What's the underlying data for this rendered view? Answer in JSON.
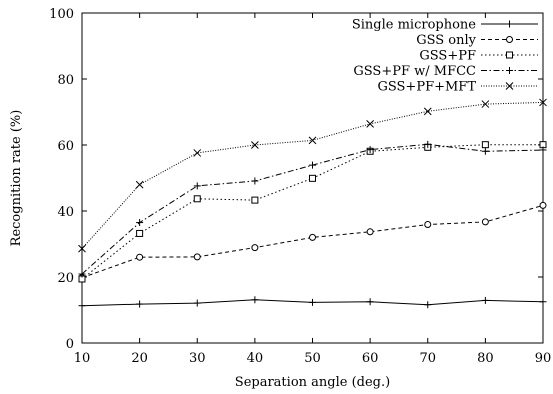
{
  "chart_data": {
    "type": "line",
    "title": "",
    "xlabel": "Separation angle (deg.)",
    "ylabel": "Recognition rate (%)",
    "xlim": [
      10,
      90
    ],
    "ylim": [
      0,
      100
    ],
    "x": [
      10,
      20,
      30,
      40,
      50,
      60,
      70,
      80,
      90
    ],
    "xticks": [
      "10",
      "20",
      "30",
      "40",
      "50",
      "60",
      "70",
      "80",
      "90"
    ],
    "yticks": [
      "0",
      "20",
      "40",
      "60",
      "80",
      "100"
    ],
    "grid": false,
    "legend_position": "top-right",
    "series": [
      {
        "name": "Single microphone",
        "marker": "plus",
        "dash": "solid",
        "values": [
          11.3,
          11.8,
          12.1,
          13.1,
          12.3,
          12.5,
          11.6,
          12.9,
          12.5
        ]
      },
      {
        "name": "GSS only",
        "marker": "circle",
        "dash": "dashed",
        "values": [
          19.8,
          26.0,
          26.1,
          28.9,
          32.0,
          33.7,
          35.9,
          36.7,
          41.7
        ]
      },
      {
        "name": "GSS+PF",
        "marker": "square",
        "dash": "dotted",
        "values": [
          19.4,
          33.2,
          43.7,
          43.3,
          49.9,
          58.1,
          59.3,
          60.1,
          60.1
        ]
      },
      {
        "name": "GSS+PF w/ MFCC",
        "marker": "plus",
        "dash": "dashdot",
        "values": [
          20.9,
          36.5,
          47.6,
          49.1,
          53.9,
          58.6,
          60.2,
          58.1,
          58.5
        ]
      },
      {
        "name": "GSS+PF+MFT",
        "marker": "cross",
        "dash": "finedot",
        "values": [
          28.6,
          48.0,
          57.6,
          60.0,
          61.4,
          66.4,
          70.2,
          72.4,
          72.9
        ]
      }
    ]
  }
}
